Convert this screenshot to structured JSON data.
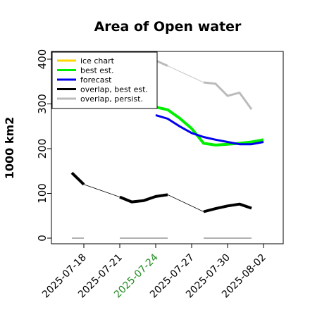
{
  "chart_data": {
    "type": "line",
    "title": "Area of Open water",
    "xlabel": "",
    "ylabel": "1000 km2",
    "ylim": [
      -10,
      420
    ],
    "yticks": [
      0,
      100,
      200,
      300,
      400
    ],
    "xlim": [
      "2025-07-16",
      "2025-08-02"
    ],
    "xticks": [
      "2025-07-18",
      "2025-07-21",
      "2025-07-24",
      "2025-07-27",
      "2025-07-30",
      "2025-08-02"
    ],
    "highlight_xtick": "2025-07-24",
    "highlight_color": "#228b22",
    "grid": false,
    "legend_position": "upper-left",
    "series": [
      {
        "name": "ice chart",
        "color": "#ffd700",
        "width": 3,
        "segments": []
      },
      {
        "name": "best est.",
        "color": "#00ee00",
        "width": 4,
        "segments": [
          [
            [
              "2025-07-24",
              293
            ],
            [
              "2025-07-25",
              287
            ],
            [
              "2025-07-26",
              268
            ],
            [
              "2025-07-27",
              245
            ],
            [
              "2025-07-28",
              212
            ],
            [
              "2025-07-29",
              208
            ],
            [
              "2025-07-30",
              210
            ],
            [
              "2025-07-31",
              212
            ],
            [
              "2025-08-01",
              215
            ],
            [
              "2025-08-02",
              220
            ]
          ]
        ]
      },
      {
        "name": "forecast",
        "color": "#0000ee",
        "width": 3,
        "segments": [
          [
            [
              "2025-07-24",
              275
            ],
            [
              "2025-07-25",
              267
            ],
            [
              "2025-07-26",
              250
            ],
            [
              "2025-07-27",
              235
            ],
            [
              "2025-07-28",
              226
            ],
            [
              "2025-07-29",
              220
            ],
            [
              "2025-07-30",
              215
            ],
            [
              "2025-07-31",
              210
            ],
            [
              "2025-08-01",
              210
            ],
            [
              "2025-08-02",
              215
            ]
          ]
        ]
      },
      {
        "name": "overlap, best est.",
        "color": "#000000",
        "width": 4,
        "segments": [
          [
            [
              "2025-07-17",
              146
            ],
            [
              "2025-07-18",
              120
            ]
          ],
          [
            [
              "2025-07-21",
              92
            ],
            [
              "2025-07-22",
              81
            ],
            [
              "2025-07-23",
              84
            ],
            [
              "2025-07-24",
              93
            ],
            [
              "2025-07-25",
              97
            ]
          ],
          [
            [
              "2025-07-28",
              59
            ],
            [
              "2025-07-29",
              66
            ],
            [
              "2025-07-30",
              72
            ],
            [
              "2025-07-31",
              76
            ],
            [
              "2025-08-01",
              67
            ]
          ]
        ]
      },
      {
        "name": "overlap, persist.",
        "color": "#bbbbbb",
        "width": 3,
        "segments": [
          [
            [
              "2025-07-24",
              397
            ],
            [
              "2025-07-25",
              385
            ]
          ],
          [
            [
              "2025-07-28",
              348
            ],
            [
              "2025-07-29",
              345
            ],
            [
              "2025-07-30",
              318
            ],
            [
              "2025-07-31",
              325
            ],
            [
              "2025-08-01",
              288
            ]
          ]
        ]
      }
    ],
    "connectors": [
      {
        "color": "#000000",
        "points": [
          [
            "2025-07-18",
            120
          ],
          [
            "2025-07-21",
            92
          ]
        ]
      },
      {
        "color": "#000000",
        "points": [
          [
            "2025-07-25",
            97
          ],
          [
            "2025-07-28",
            59
          ]
        ]
      },
      {
        "color": "#bbbbbb",
        "points": [
          [
            "2025-07-25",
            385
          ],
          [
            "2025-07-28",
            348
          ]
        ]
      }
    ],
    "baseline": {
      "color": "#999999",
      "value": 0,
      "segments": [
        [
          "2025-07-17",
          "2025-07-18"
        ],
        [
          "2025-07-21",
          "2025-07-25"
        ],
        [
          "2025-07-28",
          "2025-08-01"
        ]
      ]
    }
  }
}
